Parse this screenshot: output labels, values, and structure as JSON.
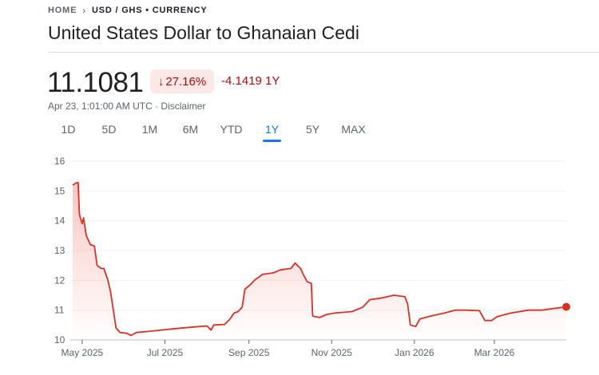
{
  "breadcrumb": {
    "home": "HOME",
    "separator": ">",
    "current": "USD / GHS • CURRENCY"
  },
  "title": "United States Dollar to Ghanaian Cedi",
  "quote": {
    "price": "11.1081",
    "change_percent": "27.16%",
    "change_direction_icon": "arrow-down-icon",
    "change_abs": "-4.1419 1Y",
    "timestamp": "Apr 23, 1:01:00 AM UTC",
    "separator": "·",
    "disclaimer": "Disclaimer"
  },
  "tabs": [
    {
      "label": "1D"
    },
    {
      "label": "5D"
    },
    {
      "label": "1M"
    },
    {
      "label": "6M"
    },
    {
      "label": "YTD"
    },
    {
      "label": "1Y",
      "active": true
    },
    {
      "label": "5Y"
    },
    {
      "label": "MAX"
    }
  ],
  "colors": {
    "line": "#d93025",
    "negative": "#a50e0e",
    "negative_bg": "#fce8e6",
    "accent": "#1a73e8"
  },
  "chart_data": {
    "type": "area",
    "x_range": [
      "2025-04-24",
      "2026-04-23"
    ],
    "ylim": [
      10,
      16
    ],
    "y_ticks": [
      "10",
      "11",
      "12",
      "13",
      "14",
      "15",
      "16"
    ],
    "x_ticks": [
      {
        "date": "2025-05-01",
        "label": "May 2025"
      },
      {
        "date": "2025-07-01",
        "label": "Jul 2025"
      },
      {
        "date": "2025-09-01",
        "label": "Sep 2025"
      },
      {
        "date": "2025-11-01",
        "label": "Nov 2025"
      },
      {
        "date": "2026-01-01",
        "label": "Jan 2026"
      },
      {
        "date": "2026-03-01",
        "label": "Mar 2026"
      }
    ],
    "grid": true,
    "series": [
      {
        "points": [
          [
            "2025-04-24",
            15.2
          ],
          [
            "2025-04-27",
            15.28
          ],
          [
            "2025-04-28",
            15.28
          ],
          [
            "2025-04-29",
            14.2
          ],
          [
            "2025-05-01",
            13.9
          ],
          [
            "2025-05-02",
            14.1
          ],
          [
            "2025-05-04",
            13.5
          ],
          [
            "2025-05-07",
            13.2
          ],
          [
            "2025-05-10",
            13.15
          ],
          [
            "2025-05-12",
            12.5
          ],
          [
            "2025-05-15",
            12.4
          ],
          [
            "2025-05-17",
            12.4
          ],
          [
            "2025-05-20",
            12.0
          ],
          [
            "2025-05-22",
            11.6
          ],
          [
            "2025-05-24",
            11.0
          ],
          [
            "2025-05-26",
            10.4
          ],
          [
            "2025-05-29",
            10.25
          ],
          [
            "2025-06-03",
            10.22
          ],
          [
            "2025-06-06",
            10.15
          ],
          [
            "2025-06-10",
            10.25
          ],
          [
            "2025-06-18",
            10.28
          ],
          [
            "2025-06-26",
            10.32
          ],
          [
            "2025-07-09",
            10.38
          ],
          [
            "2025-07-19",
            10.42
          ],
          [
            "2025-08-01",
            10.47
          ],
          [
            "2025-08-04",
            10.33
          ],
          [
            "2025-08-06",
            10.5
          ],
          [
            "2025-08-14",
            10.52
          ],
          [
            "2025-08-18",
            10.7
          ],
          [
            "2025-08-21",
            10.9
          ],
          [
            "2025-08-24",
            10.95
          ],
          [
            "2025-08-27",
            11.1
          ],
          [
            "2025-08-29",
            11.7
          ],
          [
            "2025-09-02",
            11.85
          ],
          [
            "2025-09-05",
            12.0
          ],
          [
            "2025-09-11",
            12.2
          ],
          [
            "2025-09-19",
            12.25
          ],
          [
            "2025-09-24",
            12.35
          ],
          [
            "2025-10-02",
            12.4
          ],
          [
            "2025-10-05",
            12.58
          ],
          [
            "2025-10-09",
            12.4
          ],
          [
            "2025-10-11",
            12.2
          ],
          [
            "2025-10-14",
            11.95
          ],
          [
            "2025-10-17",
            11.9
          ],
          [
            "2025-10-18",
            10.8
          ],
          [
            "2025-10-23",
            10.75
          ],
          [
            "2025-10-28",
            10.85
          ],
          [
            "2025-11-03",
            10.9
          ],
          [
            "2025-11-16",
            10.95
          ],
          [
            "2025-11-24",
            11.1
          ],
          [
            "2025-11-29",
            11.35
          ],
          [
            "2025-12-07",
            11.4
          ],
          [
            "2025-12-17",
            11.5
          ],
          [
            "2025-12-25",
            11.45
          ],
          [
            "2025-12-27",
            11.2
          ],
          [
            "2025-12-29",
            10.5
          ],
          [
            "2026-01-02",
            10.45
          ],
          [
            "2026-01-05",
            10.7
          ],
          [
            "2026-01-13",
            10.8
          ],
          [
            "2026-01-23",
            10.9
          ],
          [
            "2026-01-31",
            11.0
          ],
          [
            "2026-02-08",
            11.0
          ],
          [
            "2026-02-18",
            10.98
          ],
          [
            "2026-02-22",
            10.65
          ],
          [
            "2026-02-27",
            10.65
          ],
          [
            "2026-03-03",
            10.78
          ],
          [
            "2026-03-13",
            10.9
          ],
          [
            "2026-03-26",
            11.0
          ],
          [
            "2026-04-05",
            11.0
          ],
          [
            "2026-04-13",
            11.05
          ],
          [
            "2026-04-23",
            11.1081
          ]
        ]
      }
    ]
  }
}
